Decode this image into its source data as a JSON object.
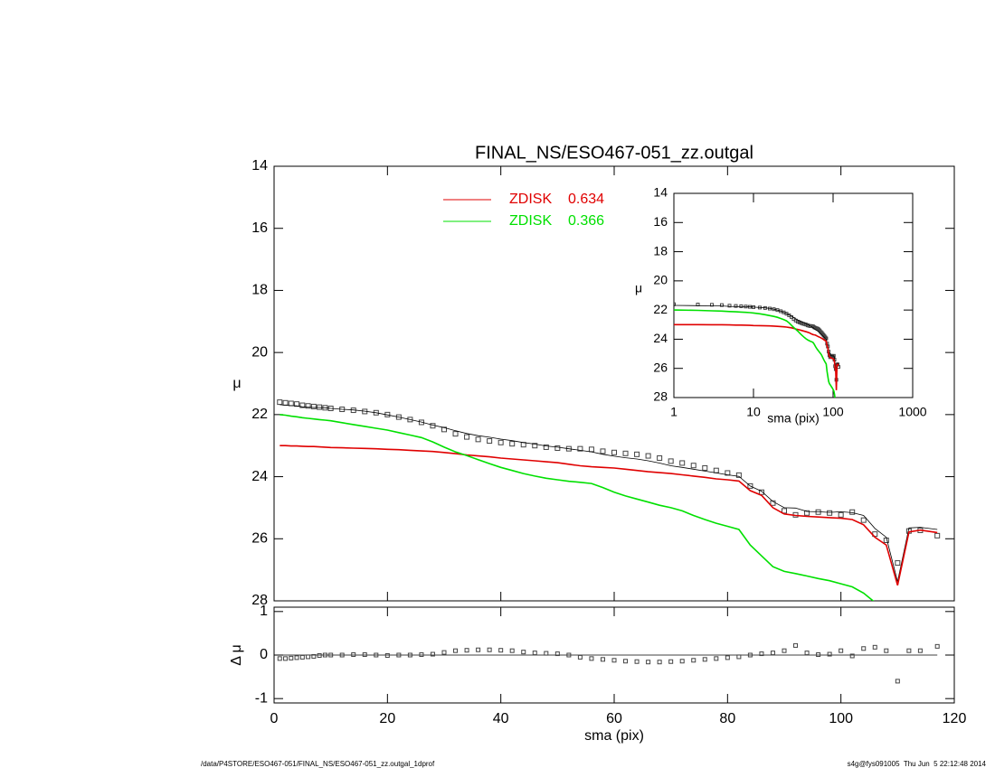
{
  "chart_data": [
    {
      "type": "line",
      "title": "FINAL_NS/ESO467-051_zz.outgal",
      "ylabel": "μ",
      "xlim": [
        0,
        120
      ],
      "ylim": [
        28,
        14
      ],
      "yticks": [
        14,
        16,
        18,
        20,
        22,
        24,
        26,
        28
      ],
      "x": [
        1,
        2,
        3,
        4,
        5,
        6,
        7,
        8,
        9,
        10,
        12,
        14,
        16,
        18,
        20,
        22,
        24,
        26,
        28,
        30,
        32,
        34,
        36,
        38,
        40,
        42,
        44,
        46,
        48,
        50,
        52,
        54,
        56,
        58,
        60,
        62,
        64,
        66,
        68,
        70,
        72,
        74,
        76,
        78,
        80,
        82,
        84,
        86,
        88,
        90,
        92,
        94,
        96,
        98,
        100,
        102,
        104,
        106,
        108,
        110,
        112,
        114,
        117
      ],
      "series": [
        {
          "marker": "square",
          "color": "#444444",
          "values": [
            21.6,
            21.62,
            21.64,
            21.66,
            21.7,
            21.72,
            21.74,
            21.76,
            21.78,
            21.8,
            21.83,
            21.86,
            21.9,
            21.94,
            22.0,
            22.08,
            22.16,
            22.25,
            22.36,
            22.48,
            22.62,
            22.72,
            22.8,
            22.85,
            22.9,
            22.94,
            22.97,
            23.0,
            23.05,
            23.08,
            23.1,
            23.1,
            23.12,
            23.18,
            23.22,
            23.25,
            23.28,
            23.33,
            23.4,
            23.5,
            23.56,
            23.64,
            23.72,
            23.8,
            23.88,
            23.95,
            24.3,
            24.5,
            24.85,
            25.1,
            25.23,
            25.17,
            25.14,
            25.17,
            25.23,
            25.14,
            25.4,
            25.85,
            26.05,
            26.78,
            25.75,
            25.73,
            25.9
          ]
        },
        {
          "color": "#000000",
          "values": [
            21.68,
            21.7,
            21.71,
            21.72,
            21.75,
            21.76,
            21.77,
            21.77,
            21.78,
            21.8,
            21.83,
            21.85,
            21.89,
            21.94,
            22.01,
            22.08,
            22.16,
            22.24,
            22.34,
            22.42,
            22.52,
            22.61,
            22.68,
            22.73,
            22.79,
            22.84,
            22.9,
            22.95,
            23.01,
            23.05,
            23.1,
            23.15,
            23.2,
            23.28,
            23.34,
            23.39,
            23.43,
            23.49,
            23.56,
            23.65,
            23.7,
            23.76,
            23.82,
            23.88,
            23.94,
            23.99,
            24.3,
            24.47,
            24.8,
            25.0,
            25.01,
            25.12,
            25.13,
            25.15,
            25.13,
            25.16,
            25.25,
            25.67,
            25.95,
            27.38,
            25.65,
            25.63,
            25.7
          ]
        },
        {
          "name": "ZDISK",
          "fraction": 0.634,
          "color": "#e00000",
          "values": [
            23.0,
            23.0,
            23.01,
            23.01,
            23.02,
            23.03,
            23.03,
            23.04,
            23.05,
            23.06,
            23.07,
            23.08,
            23.09,
            23.1,
            23.12,
            23.13,
            23.15,
            23.17,
            23.19,
            23.22,
            23.26,
            23.3,
            23.33,
            23.36,
            23.4,
            23.43,
            23.46,
            23.49,
            23.52,
            23.55,
            23.6,
            23.65,
            23.68,
            23.7,
            23.72,
            23.76,
            23.8,
            23.84,
            23.87,
            23.9,
            23.94,
            23.98,
            24.02,
            24.07,
            24.1,
            24.14,
            24.45,
            24.6,
            25.0,
            25.2,
            25.25,
            25.28,
            25.3,
            25.32,
            25.34,
            25.38,
            25.55,
            25.95,
            26.2,
            27.5,
            25.78,
            25.72,
            25.8
          ]
        },
        {
          "name": "ZDISK",
          "fraction": 0.366,
          "color": "#00e000",
          "values": [
            22.0,
            22.02,
            22.05,
            22.07,
            22.1,
            22.12,
            22.14,
            22.16,
            22.18,
            22.2,
            22.26,
            22.32,
            22.38,
            22.44,
            22.5,
            22.58,
            22.66,
            22.74,
            22.88,
            23.05,
            23.2,
            23.32,
            23.45,
            23.58,
            23.7,
            23.8,
            23.9,
            23.98,
            24.05,
            24.1,
            24.15,
            24.18,
            24.22,
            24.35,
            24.5,
            24.62,
            24.72,
            24.82,
            24.92,
            25.0,
            25.1,
            25.25,
            25.38,
            25.5,
            25.6,
            25.7,
            26.2,
            26.55,
            26.9,
            27.05,
            27.12,
            27.2,
            27.28,
            27.35,
            27.45,
            27.55,
            27.75,
            28.05,
            null,
            null,
            null,
            null,
            null
          ]
        }
      ]
    },
    {
      "type": "scatter",
      "ylabel": "Δ μ",
      "xlabel": "sma (pix)",
      "xlim": [
        0,
        120
      ],
      "xticks": [
        0,
        20,
        40,
        60,
        80,
        100,
        120
      ],
      "ylim": [
        -1.1,
        1.1
      ],
      "yticks": [
        -1,
        0,
        1
      ],
      "values": [
        -0.08,
        -0.08,
        -0.07,
        -0.06,
        -0.05,
        -0.04,
        -0.03,
        -0.01,
        0.0,
        0.0,
        0.0,
        0.01,
        0.01,
        0.0,
        -0.01,
        0.0,
        0.0,
        0.01,
        0.02,
        0.06,
        0.1,
        0.11,
        0.12,
        0.12,
        0.11,
        0.1,
        0.07,
        0.05,
        0.04,
        0.03,
        0.0,
        -0.05,
        -0.08,
        -0.1,
        -0.12,
        -0.14,
        -0.15,
        -0.16,
        -0.16,
        -0.15,
        -0.14,
        -0.12,
        -0.1,
        -0.08,
        -0.06,
        -0.04,
        0.0,
        0.03,
        0.05,
        0.1,
        0.22,
        0.05,
        0.01,
        0.02,
        0.1,
        -0.02,
        0.15,
        0.18,
        0.1,
        -0.6,
        0.1,
        0.1,
        0.2
      ]
    },
    {
      "type": "line",
      "log_x": true,
      "ylabel": "μ",
      "xlabel": "sma (pix)",
      "xlim": [
        1,
        1000
      ],
      "xticks": [
        1,
        10,
        100,
        1000
      ],
      "ylim": [
        28,
        14
      ],
      "yticks": [
        14,
        16,
        18,
        20,
        22,
        24,
        26,
        28
      ]
    }
  ],
  "footer": {
    "left": "/data/P4STORE/ESO467-051/FINAL_NS/ESO467-051_zz.outgal_1dprof",
    "right": "s4g@fys091005  Thu Jun  5 22:12:48 2014"
  }
}
